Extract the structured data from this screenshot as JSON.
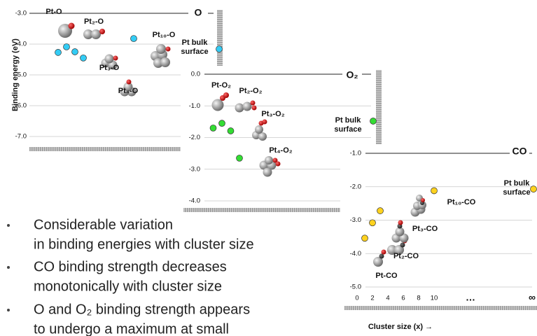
{
  "chart_data": [
    {
      "type": "scatter",
      "title": "O",
      "y_label": "Binding energy (eV)",
      "x": [
        1,
        2,
        3,
        4,
        10
      ],
      "values": [
        -4.27,
        -4.09,
        -4.25,
        -4.45,
        -3.82
      ],
      "labels": [
        "Pt-O",
        "Pt₂-O",
        "Pt₃-O",
        "Pt₄-O",
        "Pt₁₀-O"
      ],
      "color": "#33ccf5",
      "bulk": {
        "label": [
          "Pt bulk",
          "surface"
        ],
        "value": -4.16
      },
      "ylim": [
        -7,
        -3
      ],
      "yticks": [
        {
          "value": -3,
          "label": "-3.0"
        },
        {
          "value": -4,
          "label": "-4.0"
        },
        {
          "value": -5,
          "label": "-5.0"
        },
        {
          "value": -6,
          "label": "-6.0"
        },
        {
          "value": -7,
          "label": "-7.0"
        }
      ],
      "grid": true
    },
    {
      "type": "scatter",
      "title": "O₂",
      "x": [
        1,
        2,
        3,
        4
      ],
      "values": [
        -1.7,
        -1.55,
        -1.79,
        -2.65
      ],
      "labels": [
        "Pt-O₂",
        "Pt₂-O₂",
        "Pt₃-O₂",
        "Pt₄-O₂"
      ],
      "color": "#33dd33",
      "bulk": {
        "label": [
          "Pt bulk",
          "surface"
        ],
        "value": -1.48
      },
      "ylim": [
        -4,
        0
      ],
      "yticks": [
        {
          "value": 0,
          "label": "0.0"
        },
        {
          "value": -1,
          "label": "-1.0"
        },
        {
          "value": -2,
          "label": "-2.0"
        },
        {
          "value": -3,
          "label": "-3.0"
        },
        {
          "value": -4,
          "label": "-4.0"
        }
      ],
      "grid": true
    },
    {
      "type": "scatter",
      "title": "CO",
      "x_label": "Cluster size (x) →",
      "x": [
        1,
        2,
        3,
        10
      ],
      "values": [
        -3.54,
        -3.08,
        -2.72,
        -2.12
      ],
      "labels": [
        "Pt-CO",
        "Pt₂-CO",
        "Pt₃-CO",
        "Pt₁₀-CO"
      ],
      "color": "#ffd21f",
      "bulk": {
        "label": [
          "Pt bulk",
          "surface"
        ],
        "value": -2.07
      },
      "xlim": [
        0,
        10
      ],
      "xticks": [
        0,
        2,
        4,
        6,
        8,
        10
      ],
      "x_extra_ticks": [
        "…",
        "∞"
      ],
      "ylim": [
        -5,
        -1
      ],
      "yticks": [
        {
          "value": -1,
          "label": "-1.0"
        },
        {
          "value": -2,
          "label": "-2.0"
        },
        {
          "value": -3,
          "label": "-3.0"
        },
        {
          "value": -4,
          "label": "-4.0"
        },
        {
          "value": -5,
          "label": "-5.0"
        }
      ],
      "grid": true
    }
  ],
  "bullets": [
    [
      "Considerable variation",
      "in binding energies with cluster size"
    ],
    [
      "CO binding strength decreases",
      "monotonically with cluster size"
    ],
    [
      "O and O₂ binding strength appears",
      "to undergo a maximum at small"
    ]
  ]
}
